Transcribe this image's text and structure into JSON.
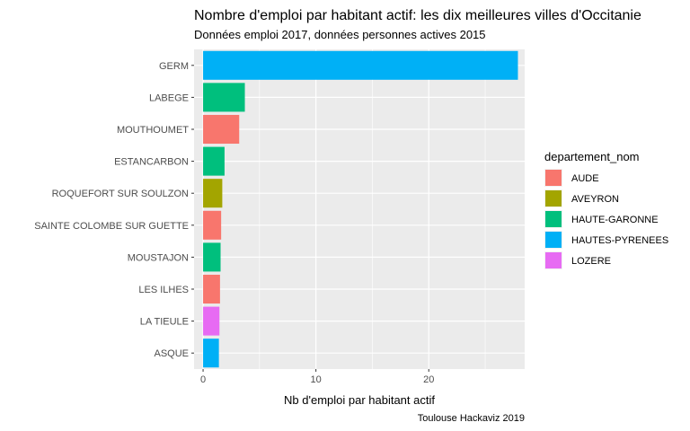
{
  "chart_data": {
    "type": "bar",
    "orientation": "horizontal",
    "title": "Nombre d'emploi par habitant actif: les dix meilleures villes d'Occitanie",
    "subtitle": "Données emploi 2017, données personnes actives 2015",
    "xlabel": "Nb d'emploi par habitant actif",
    "ylabel": "",
    "caption": "Toulouse Hackaviz 2019",
    "xlim": [
      -0.8,
      28.5
    ],
    "xticks": [
      0,
      10,
      20
    ],
    "grid": true,
    "legend": {
      "title": "departement_nom",
      "placement": "right",
      "entries": [
        {
          "name": "AUDE",
          "color": "#F8766D"
        },
        {
          "name": "AVEYRON",
          "color": "#A3A500"
        },
        {
          "name": "HAUTE-GARONNE",
          "color": "#00BF7D"
        },
        {
          "name": "HAUTES-PYRENEES",
          "color": "#00B0F6"
        },
        {
          "name": "LOZERE",
          "color": "#E76BF3"
        }
      ]
    },
    "categories": [
      "GERM",
      "LABEGE",
      "MOUTHOUMET",
      "ESTANCARBON",
      "ROQUEFORT SUR SOULZON",
      "SAINTE COLOMBE SUR GUETTE",
      "MOUSTAJON",
      "LES ILHES",
      "LA TIEULE",
      "ASQUE"
    ],
    "values": [
      27.9,
      3.7,
      3.2,
      1.9,
      1.7,
      1.6,
      1.55,
      1.5,
      1.45,
      1.4
    ],
    "groups": [
      "HAUTES-PYRENEES",
      "HAUTE-GARONNE",
      "AUDE",
      "HAUTE-GARONNE",
      "AVEYRON",
      "AUDE",
      "HAUTE-GARONNE",
      "AUDE",
      "LOZERE",
      "HAUTES-PYRENEES"
    ]
  }
}
